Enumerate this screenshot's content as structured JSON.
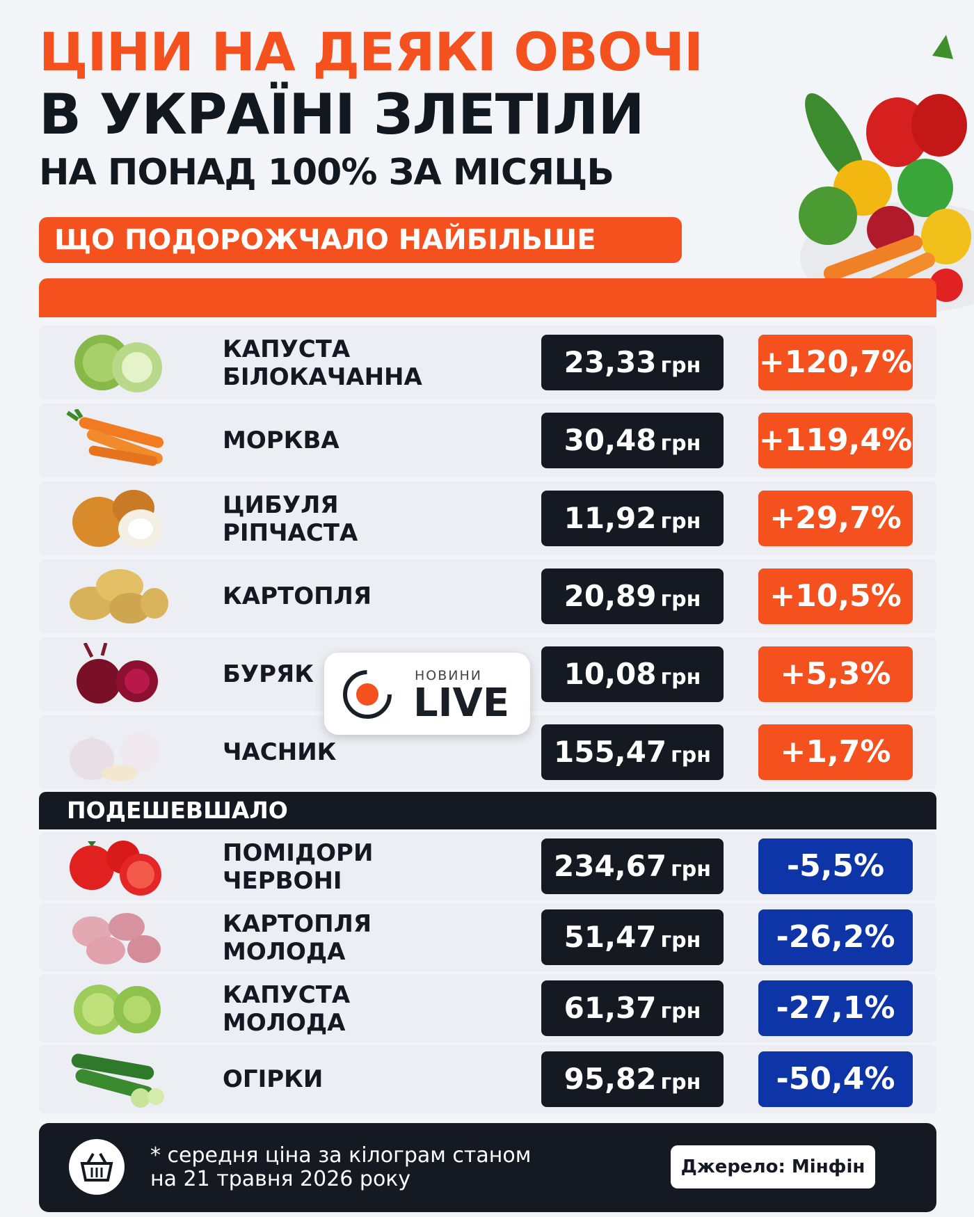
{
  "header": {
    "line1": "ЦІНИ НА ДЕЯКІ ОВОЧІ",
    "line2": "В УКРАЇНІ ЗЛЕТІЛИ",
    "line3": "НА ПОНАД 100% ЗА МІСЯЦЬ",
    "most_expensive_label": "ЩО ПОДОРОЖЧАЛО НАЙБІЛЬШЕ"
  },
  "currency": "грн",
  "increased": [
    {
      "name1": "КАПУСТА",
      "name2": "БІЛОКАЧАННА",
      "price": "23,33",
      "change": "+120,7%",
      "icon": "cabbage-icon"
    },
    {
      "name1": "МОРКВА",
      "name2": "",
      "price": "30,48",
      "change": "+119,4%",
      "icon": "carrot-icon"
    },
    {
      "name1": "ЦИБУЛЯ",
      "name2": "РІПЧАСТА",
      "price": "11,92",
      "change": "+29,7%",
      "icon": "onion-icon"
    },
    {
      "name1": "КАРТОПЛЯ",
      "name2": "",
      "price": "20,89",
      "change": "+10,5%",
      "icon": "potato-icon"
    },
    {
      "name1": "БУРЯК",
      "name2": "",
      "price": "10,08",
      "change": "+5,3%",
      "icon": "beet-icon"
    },
    {
      "name1": "ЧАСНИК",
      "name2": "",
      "price": "155,47",
      "change": "+1,7%",
      "icon": "garlic-icon"
    }
  ],
  "cheaper_label": "ПОДЕШЕВШАЛО",
  "decreased": [
    {
      "name1": "ПОМІДОРИ",
      "name2": "ЧЕРВОНІ",
      "price": "234,67",
      "change": "-5,5%",
      "icon": "tomato-icon"
    },
    {
      "name1": "КАРТОПЛЯ",
      "name2": "МОЛОДА",
      "price": "51,47",
      "change": "-26,2%",
      "icon": "new-potato-icon"
    },
    {
      "name1": "КАПУСТА",
      "name2": "МОЛОДА",
      "price": "61,37",
      "change": "-27,1%",
      "icon": "young-cabbage-icon"
    },
    {
      "name1": "ОГІРКИ",
      "name2": "",
      "price": "95,82",
      "change": "-50,4%",
      "icon": "cucumber-icon"
    }
  ],
  "logo": {
    "small": "НОВИНИ",
    "big": "LIVE"
  },
  "footer": {
    "note_line1": "* середня ціна за кілограм станом",
    "note_line2": "на 21 травня 2026 року",
    "source": "Джерело: Мінфін"
  },
  "colors": {
    "orange": "#f4511e",
    "navy": "#0e35a8",
    "dark": "#151922"
  }
}
